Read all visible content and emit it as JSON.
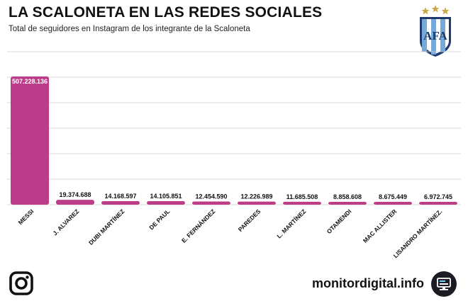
{
  "header": {
    "title": "LA SCALONETA EN LAS REDES SOCIALES",
    "subtitle": "Total de seguidores en Instagram de los integrante de la Scaloneta",
    "crest_text": "AFA"
  },
  "colors": {
    "bar": "#bd3c8a",
    "bar_top": "#d94fa6",
    "grid": "#cfcfcf",
    "brand_icon_bg": "#1b1b24",
    "brand_icon_accent": "#6bd3ff"
  },
  "icons": {
    "instagram": "instagram-icon",
    "brand": "monitor-icon",
    "crest": "afa-crest-icon"
  },
  "footer": {
    "brand": "monitordigital.info"
  },
  "chart_data": {
    "type": "bar",
    "categories": [
      "MESSI",
      "J. ALVAREZ",
      "DUBI MARTÍNEZ",
      "DE PAUL",
      "E. FERNÁNDEZ",
      "PAREDES",
      "L. MARTÍNEZ",
      "OTAMENDI",
      "MAC ALLISTER",
      "LISANDRO MARTÍNEZ."
    ],
    "values": [
      507228136,
      19374688,
      14168597,
      14105851,
      12454590,
      12226989,
      11685508,
      8858608,
      8675449,
      6972745
    ],
    "value_labels": [
      "507.228.136",
      "19.374.688",
      "14.168.597",
      "14.105.851",
      "12.454.590",
      "12.226.989",
      "11.685.508",
      "8.858.608",
      "8.675.449",
      "6.972.745"
    ],
    "ylim": [
      0,
      507228136
    ],
    "grid": true,
    "legend": "none"
  }
}
